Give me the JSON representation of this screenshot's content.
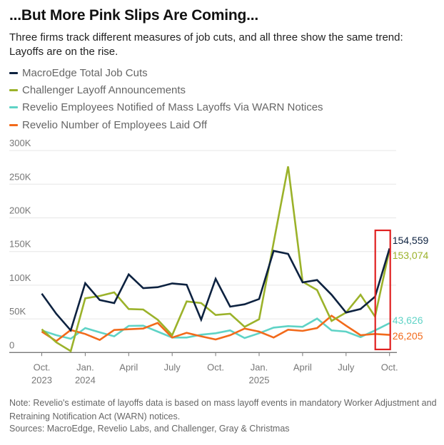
{
  "header": {
    "title": "...But More Pink Slips Are Coming...",
    "subtitle": "Three firms track different measures of job cuts, and all three show the same trend: Layoffs are on the rise."
  },
  "footer": {
    "note": "Note: Revelio's estimate of layoffs data is based on mass layoff events in mandatory Worker Adjustment and Retraining Notification Act (WARN) notices.",
    "sources": "Sources: MacroEdge, Revelio Labs, and Challenger, Gray & Christmas"
  },
  "highlight": {
    "label": "latest-month-highlight",
    "month": "2025-10",
    "color": "#e02020"
  },
  "chart_data": {
    "type": "line",
    "title": "...But More Pink Slips Are Coming...",
    "xlabel": "",
    "ylabel": "",
    "ylim": [
      0,
      300000
    ],
    "grid": true,
    "legend_position": "top-left",
    "yticks": [
      {
        "value": 0,
        "label": "0"
      },
      {
        "value": 50000,
        "label": "50K"
      },
      {
        "value": 100000,
        "label": "100K"
      },
      {
        "value": 150000,
        "label": "150K"
      },
      {
        "value": 200000,
        "label": "200K"
      },
      {
        "value": 250000,
        "label": "250K"
      },
      {
        "value": 300000,
        "label": "300K"
      }
    ],
    "x": [
      "2023-10",
      "2023-11",
      "2023-12",
      "2024-01",
      "2024-02",
      "2024-03",
      "2024-04",
      "2024-05",
      "2024-06",
      "2024-07",
      "2024-08",
      "2024-09",
      "2024-10",
      "2024-11",
      "2024-12",
      "2025-01",
      "2025-02",
      "2025-03",
      "2025-04",
      "2025-05",
      "2025-06",
      "2025-07",
      "2025-08",
      "2025-09",
      "2025-10"
    ],
    "xticks": [
      {
        "index": 0,
        "line1": "Oct.",
        "line2": "2023"
      },
      {
        "index": 3,
        "line1": "Jan.",
        "line2": "2024"
      },
      {
        "index": 6,
        "line1": "April",
        "line2": ""
      },
      {
        "index": 9,
        "line1": "July",
        "line2": ""
      },
      {
        "index": 12,
        "line1": "Oct.",
        "line2": ""
      },
      {
        "index": 15,
        "line1": "Jan.",
        "line2": "2025"
      },
      {
        "index": 18,
        "line1": "April",
        "line2": ""
      },
      {
        "index": 21,
        "line1": "July",
        "line2": ""
      },
      {
        "index": 24,
        "line1": "Oct.",
        "line2": ""
      }
    ],
    "series": [
      {
        "name": "MacroEdge Total Job Cuts",
        "key": "macroedge",
        "color": "#0d2240",
        "end_label": "154,559",
        "values": [
          87500,
          57500,
          32800,
          103000,
          78000,
          73400,
          116000,
          95600,
          97000,
          102700,
          100600,
          48700,
          109400,
          68100,
          71600,
          79400,
          151000,
          146500,
          104100,
          107600,
          85800,
          59300,
          64600,
          82900,
          154559
        ]
      },
      {
        "name": "Challenger Layoff Announcements",
        "key": "challenger",
        "color": "#9bb22a",
        "end_label": "153,074",
        "values": [
          34500,
          15100,
          2000,
          80500,
          84000,
          89300,
          64600,
          63900,
          48700,
          25700,
          75800,
          73400,
          55700,
          57500,
          38100,
          49400,
          163000,
          276400,
          105200,
          92800,
          46900,
          59300,
          85800,
          53300,
          153074
        ]
      },
      {
        "name": "Revelio Employees Notified of Mass Layoffs Via WARN Notices",
        "key": "revelio-warn",
        "color": "#5fd3c6",
        "end_label": "43,626",
        "values": [
          32800,
          25700,
          20400,
          36300,
          30000,
          24000,
          39500,
          39800,
          31000,
          22200,
          22200,
          26500,
          28600,
          32800,
          21500,
          28600,
          37000,
          39200,
          38100,
          50400,
          32800,
          31000,
          22900,
          32800,
          43626
        ]
      },
      {
        "name": "Revelio Number of Employees Laid Off",
        "key": "revelio-laidoff",
        "color": "#f26a1b",
        "end_label": "26,205",
        "values": [
          31000,
          16900,
          33500,
          27500,
          18600,
          33500,
          34500,
          35600,
          44000,
          22200,
          29200,
          24000,
          19400,
          25700,
          35600,
          31000,
          22200,
          33900,
          32100,
          36300,
          54700,
          39800,
          25700,
          27500,
          26205
        ]
      }
    ]
  }
}
